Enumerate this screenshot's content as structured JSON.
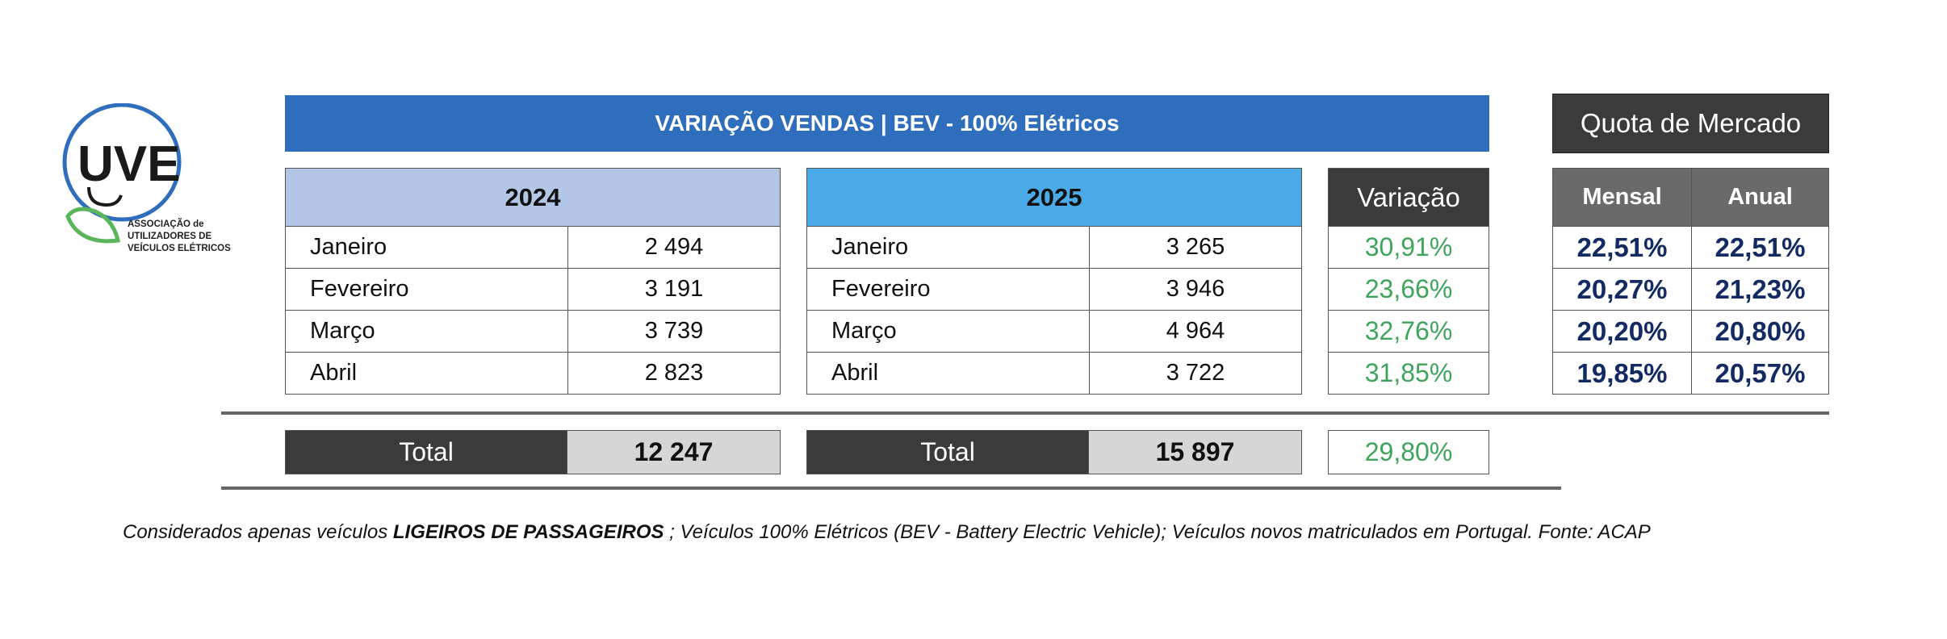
{
  "logo": {
    "acronym": "UVE",
    "org_line1": "ASSOCIAÇÃO de",
    "org_line2": "UTILIZADORES DE",
    "org_line3": "VEÍCULOS ELÉTRICOS",
    "colors": {
      "ring": "#2f6dbd",
      "leaf": "#5bb55a",
      "text": "#1a1a1a"
    }
  },
  "banner": {
    "title": "VARIAÇÃO VENDAS | BEV - 100% Elétricos",
    "color": "#2f6dbd"
  },
  "quota_title": "Quota de Mercado",
  "table_2024": {
    "year": "2024",
    "rows": [
      {
        "month": "Janeiro",
        "value": "2 494"
      },
      {
        "month": "Fevereiro",
        "value": "3 191"
      },
      {
        "month": "Março",
        "value": "3 739"
      },
      {
        "month": "Abril",
        "value": "2 823"
      }
    ]
  },
  "table_2025": {
    "year": "2025",
    "rows": [
      {
        "month": "Janeiro",
        "value": "3 265"
      },
      {
        "month": "Fevereiro",
        "value": "3 946"
      },
      {
        "month": "Março",
        "value": "4 964"
      },
      {
        "month": "Abril",
        "value": "3 722"
      }
    ]
  },
  "variacao": {
    "header": "Variação",
    "values": [
      "30,91%",
      "23,66%",
      "32,76%",
      "31,85%"
    ],
    "color": "#3fa55a"
  },
  "quota": {
    "headers": [
      "Mensal",
      "Anual"
    ],
    "rows": [
      {
        "mensal": "22,51%",
        "anual": "22,51%"
      },
      {
        "mensal": "20,27%",
        "anual": "21,23%"
      },
      {
        "mensal": "20,20%",
        "anual": "20,80%"
      },
      {
        "mensal": "19,85%",
        "anual": "20,57%"
      }
    ],
    "color": "#142a63"
  },
  "totals": {
    "label_2024": "Total",
    "value_2024": "12 247",
    "label_2025": "Total",
    "value_2025": "15 897",
    "variacao": "29,80%"
  },
  "footnote": {
    "prefix": "Considerados apenas veículos ",
    "bold": "LIGEIROS DE PASSAGEIROS",
    "suffix": " ; Veículos 100% Elétricos (BEV - Battery Electric Vehicle); Veículos novos matriculados em Portugal. Fonte: ACAP"
  }
}
